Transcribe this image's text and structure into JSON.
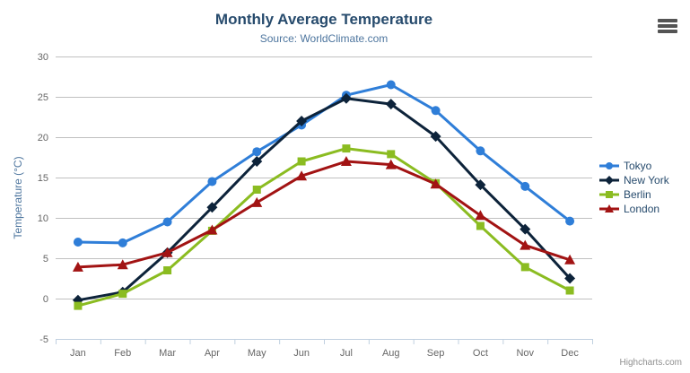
{
  "credits": "Highcharts.com",
  "icons": {
    "export_menu": "hamburger"
  },
  "chart_data": {
    "type": "line",
    "title": "Monthly Average Temperature",
    "subtitle": "Source: WorldClimate.com",
    "xlabel": "",
    "ylabel": "Temperature (°C)",
    "categories": [
      "Jan",
      "Feb",
      "Mar",
      "Apr",
      "May",
      "Jun",
      "Jul",
      "Aug",
      "Sep",
      "Oct",
      "Nov",
      "Dec"
    ],
    "series": [
      {
        "name": "Tokyo",
        "color": "#2f7ed8",
        "marker": "circle",
        "values": [
          7.0,
          6.9,
          9.5,
          14.5,
          18.2,
          21.5,
          25.2,
          26.5,
          23.3,
          18.3,
          13.9,
          9.6
        ]
      },
      {
        "name": "New York",
        "color": "#0d233a",
        "marker": "diamond",
        "values": [
          -0.2,
          0.8,
          5.7,
          11.3,
          17.0,
          22.0,
          24.8,
          24.1,
          20.1,
          14.1,
          8.6,
          2.5
        ]
      },
      {
        "name": "Berlin",
        "color": "#8bbc21",
        "marker": "square",
        "values": [
          -0.9,
          0.6,
          3.5,
          8.4,
          13.5,
          17.0,
          18.6,
          17.9,
          14.3,
          9.0,
          3.9,
          1.0
        ]
      },
      {
        "name": "London",
        "color": "#a21313",
        "marker": "triangle",
        "values": [
          3.9,
          4.2,
          5.7,
          8.5,
          11.9,
          15.2,
          17.0,
          16.6,
          14.2,
          10.3,
          6.6,
          4.8
        ]
      }
    ],
    "ylim": [
      -5,
      30
    ],
    "yticks": [
      -5,
      0,
      5,
      10,
      15,
      20,
      25,
      30
    ],
    "grid": true,
    "legend_position": "right",
    "colors": {
      "gridline": "#c0c0c0",
      "axis_line": "#c0d0e0",
      "axis_label": "#666666",
      "axis_title": "#4d759e",
      "title": "#274b6d",
      "legend_text": "#274b6d",
      "credits_text": "#909090"
    }
  }
}
